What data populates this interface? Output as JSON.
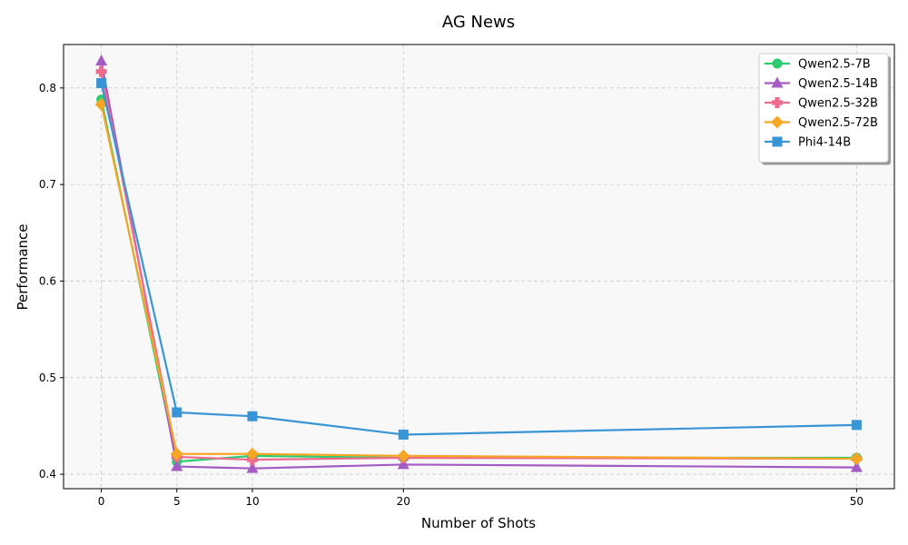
{
  "chart_data": {
    "type": "line",
    "title": "AG News",
    "xlabel": "Number of Shots",
    "ylabel": "Performance",
    "x": [
      0,
      5,
      10,
      20,
      50
    ],
    "xticks": [
      "0",
      "5",
      "10",
      "20",
      "50"
    ],
    "xlim": [
      -2.5,
      52.5
    ],
    "yticks": [
      "0.4",
      "0.5",
      "0.6",
      "0.7",
      "0.8"
    ],
    "ylim": [
      0.385,
      0.845
    ],
    "grid": true,
    "legend_position": "top-right",
    "series": [
      {
        "name": "Qwen2.5-7B",
        "color": "#2ecc71",
        "marker": "circle",
        "values": [
          0.788,
          0.413,
          0.419,
          0.417,
          0.417
        ]
      },
      {
        "name": "Qwen2.5-14B",
        "color": "#a45bc4",
        "marker": "triangle",
        "values": [
          0.828,
          0.408,
          0.406,
          0.41,
          0.407
        ]
      },
      {
        "name": "Qwen2.5-32B",
        "color": "#ee6b8d",
        "marker": "plus",
        "values": [
          0.817,
          0.418,
          0.415,
          0.417,
          0.416
        ]
      },
      {
        "name": "Qwen2.5-72B",
        "color": "#f5a623",
        "marker": "diamond",
        "values": [
          0.783,
          0.421,
          0.421,
          0.419,
          0.416
        ]
      },
      {
        "name": "Phi4-14B",
        "color": "#3a95d6",
        "marker": "square",
        "values": [
          0.805,
          0.464,
          0.46,
          0.441,
          0.451
        ]
      }
    ]
  }
}
